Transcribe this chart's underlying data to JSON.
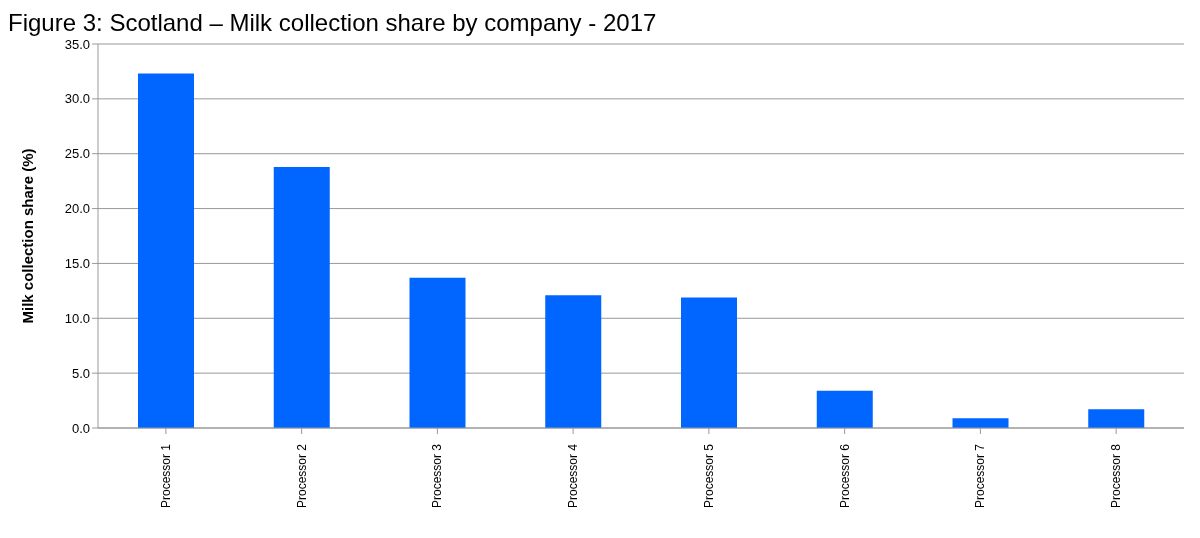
{
  "chart_data": {
    "type": "bar",
    "title": "Figure 3: Scotland – Milk collection share by company - 2017",
    "ylabel": "Milk collection share (%)",
    "categories": [
      "Processor 1",
      "Processor 2",
      "Processor 3",
      "Processor 4",
      "Processor 5",
      "Processor 6",
      "Processor 7",
      "Processor 8"
    ],
    "values": [
      32.3,
      23.8,
      13.7,
      12.1,
      11.9,
      3.4,
      0.9,
      1.7
    ],
    "color": "#0066ff",
    "ylim": [
      0,
      35
    ],
    "yticks": [
      {
        "value": 0,
        "label": "0.0"
      },
      {
        "value": 5,
        "label": "5.0"
      },
      {
        "value": 10,
        "label": "10.0"
      },
      {
        "value": 15,
        "label": "15.0"
      },
      {
        "value": 20,
        "label": "20.0"
      },
      {
        "value": 25,
        "label": "25.0"
      },
      {
        "value": 30,
        "label": "30.0"
      },
      {
        "value": 35,
        "label": "35.0"
      }
    ],
    "grid": "y"
  }
}
